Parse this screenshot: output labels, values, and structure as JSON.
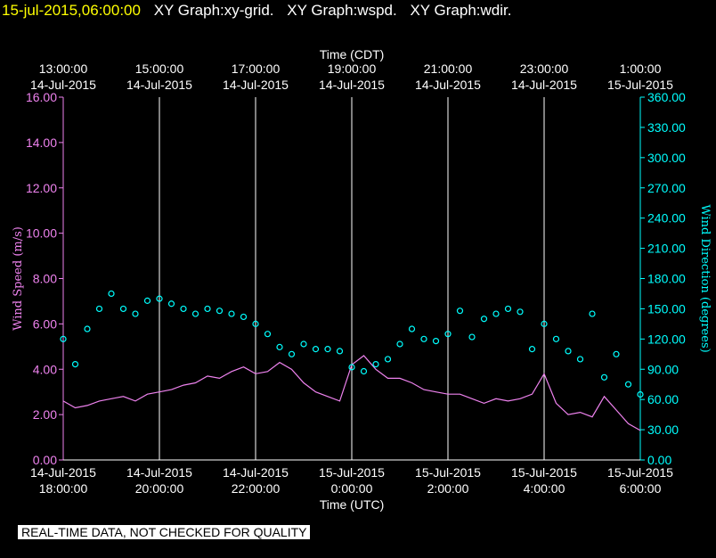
{
  "header": {
    "timestamp": "15-jul-2015,06:00:00",
    "graphs": [
      "XY Graph:xy-grid.",
      "XY Graph:wspd.",
      "XY Graph:wdir."
    ]
  },
  "disclaimer": "REAL-TIME DATA, NOT CHECKED FOR QUALITY",
  "colors": {
    "background": "#000000",
    "timestamp": "#ffff00",
    "wind_speed": "#ee82ee",
    "wind_direction": "#00ffff",
    "grid": "#ffffff"
  },
  "chart_data": {
    "type": "line",
    "top_axis": {
      "title": "Time (CDT)",
      "ticks": [
        {
          "t": 0,
          "time": "13:00:00",
          "date": "14-Jul-2015"
        },
        {
          "t": 2,
          "time": "15:00:00",
          "date": "14-Jul-2015"
        },
        {
          "t": 4,
          "time": "17:00:00",
          "date": "14-Jul-2015"
        },
        {
          "t": 6,
          "time": "19:00:00",
          "date": "14-Jul-2015"
        },
        {
          "t": 8,
          "time": "21:00:00",
          "date": "14-Jul-2015"
        },
        {
          "t": 10,
          "time": "23:00:00",
          "date": "14-Jul-2015"
        },
        {
          "t": 12,
          "time": "1:00:00",
          "date": "15-Jul-2015"
        }
      ]
    },
    "bottom_axis": {
      "title": "Time (UTC)",
      "ticks": [
        {
          "t": 0,
          "date": "14-Jul-2015",
          "time": "18:00:00"
        },
        {
          "t": 2,
          "date": "14-Jul-2015",
          "time": "20:00:00"
        },
        {
          "t": 4,
          "date": "14-Jul-2015",
          "time": "22:00:00"
        },
        {
          "t": 6,
          "date": "15-Jul-2015",
          "time": "0:00:00"
        },
        {
          "t": 8,
          "date": "15-Jul-2015",
          "time": "2:00:00"
        },
        {
          "t": 10,
          "date": "15-Jul-2015",
          "time": "4:00:00"
        },
        {
          "t": 12,
          "date": "15-Jul-2015",
          "time": "6:00:00"
        }
      ]
    },
    "x_range_hours": [
      0,
      12
    ],
    "y_left": {
      "label": "Wind Speed (m/s)",
      "range": [
        0,
        16
      ],
      "ticks": [
        "0.00",
        "2.00",
        "4.00",
        "6.00",
        "8.00",
        "10.00",
        "12.00",
        "14.00",
        "16.00"
      ]
    },
    "y_right": {
      "label": "Wind Direction (degrees)",
      "range": [
        0,
        360
      ],
      "ticks": [
        "0.00",
        "30.00",
        "60.00",
        "90.00",
        "120.00",
        "150.00",
        "180.00",
        "210.00",
        "240.00",
        "270.00",
        "300.00",
        "330.00",
        "360.00"
      ]
    },
    "grid": "vertical",
    "series": [
      {
        "name": "Wind Speed",
        "axis": "left",
        "style": "line",
        "x": [
          0,
          0.25,
          0.5,
          0.75,
          1,
          1.25,
          1.5,
          1.75,
          2,
          2.25,
          2.5,
          2.75,
          3,
          3.25,
          3.5,
          3.75,
          4,
          4.25,
          4.5,
          4.75,
          5,
          5.25,
          5.5,
          5.75,
          6,
          6.25,
          6.5,
          6.75,
          7,
          7.25,
          7.5,
          7.75,
          8,
          8.25,
          8.5,
          8.75,
          9,
          9.25,
          9.5,
          9.75,
          10,
          10.25,
          10.5,
          10.75,
          11,
          11.25,
          11.5,
          11.75,
          12
        ],
        "values": [
          2.6,
          2.3,
          2.4,
          2.6,
          2.7,
          2.8,
          2.6,
          2.9,
          3.0,
          3.1,
          3.3,
          3.4,
          3.7,
          3.6,
          3.9,
          4.1,
          3.8,
          3.9,
          4.3,
          4.0,
          3.4,
          3.0,
          2.8,
          2.6,
          4.2,
          4.6,
          4.0,
          3.6,
          3.6,
          3.4,
          3.1,
          3.0,
          2.9,
          2.9,
          2.7,
          2.5,
          2.7,
          2.6,
          2.7,
          2.9,
          3.8,
          2.5,
          2.0,
          2.1,
          1.9,
          2.8,
          2.2,
          1.6,
          1.3
        ]
      },
      {
        "name": "Wind Direction",
        "axis": "right",
        "style": "scatter",
        "x": [
          0,
          0.25,
          0.5,
          0.75,
          1,
          1.25,
          1.5,
          1.75,
          2,
          2.25,
          2.5,
          2.75,
          3,
          3.25,
          3.5,
          3.75,
          4,
          4.25,
          4.5,
          4.75,
          5,
          5.25,
          5.5,
          5.75,
          6,
          6.25,
          6.5,
          6.75,
          7,
          7.25,
          7.5,
          7.75,
          8,
          8.25,
          8.5,
          8.75,
          9,
          9.25,
          9.5,
          9.75,
          10,
          10.25,
          10.5,
          10.75,
          11,
          11.25,
          11.5,
          11.75,
          12
        ],
        "values": [
          120,
          95,
          130,
          150,
          165,
          150,
          145,
          158,
          160,
          155,
          150,
          145,
          150,
          148,
          145,
          142,
          135,
          125,
          112,
          105,
          115,
          110,
          110,
          108,
          92,
          88,
          95,
          100,
          115,
          130,
          120,
          118,
          125,
          148,
          122,
          140,
          145,
          150,
          147,
          110,
          135,
          120,
          108,
          100,
          145,
          82,
          105,
          75,
          65
        ]
      }
    ]
  }
}
